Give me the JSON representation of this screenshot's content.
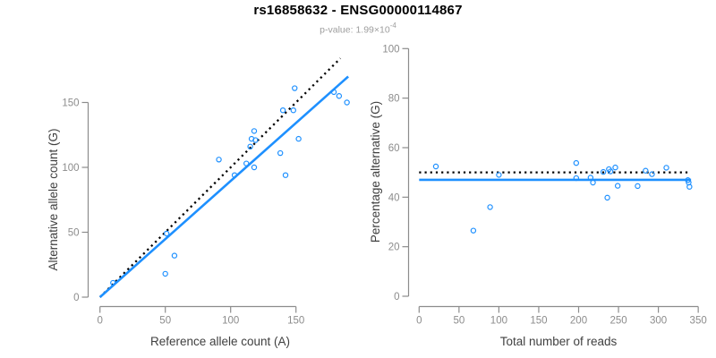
{
  "figure": {
    "title": "rs16858632 - ENSG00000114867",
    "subtitle": {
      "main": "p-value: 1.99×10",
      "exponent": "-4"
    }
  },
  "colors": {
    "accent_blue": "#1E90FF",
    "identity_line_black": "#000000",
    "axis_gray": "#8c8c8c",
    "tick_label_gray": "#8c8c8c",
    "axis_title_dark": "#404040",
    "title_black": "#000000",
    "subtitle_gray": "#9e9e9e"
  },
  "chart_data": [
    {
      "name": "allele-counts-scatter",
      "type": "scatter",
      "title": "",
      "xlabel": "Reference allele count (A)",
      "ylabel": "Alternative allele count (G)",
      "xlim": [
        0,
        190
      ],
      "ylim": [
        0,
        185
      ],
      "xticks": [
        0,
        50,
        100,
        150
      ],
      "yticks": [
        0,
        50,
        100,
        150
      ],
      "grid": false,
      "legend": "none",
      "point_style": "open-circle",
      "points": [
        [
          10,
          11
        ],
        [
          50,
          18
        ],
        [
          57,
          32
        ],
        [
          51,
          49
        ],
        [
          91,
          106
        ],
        [
          103,
          94
        ],
        [
          112,
          103
        ],
        [
          118,
          100
        ],
        [
          115,
          116
        ],
        [
          116,
          122
        ],
        [
          119,
          121
        ],
        [
          118,
          128
        ],
        [
          138,
          111
        ],
        [
          142,
          94
        ],
        [
          140,
          144
        ],
        [
          148,
          144
        ],
        [
          152,
          122
        ],
        [
          149,
          161
        ],
        [
          179,
          158
        ],
        [
          183,
          155
        ],
        [
          189,
          150
        ]
      ],
      "lines": [
        {
          "name": "identity-line",
          "style": "dotted",
          "color": "#000000",
          "from": [
            0,
            0
          ],
          "to": [
            184,
            184
          ]
        },
        {
          "name": "fit-line",
          "style": "solid",
          "color": "#1E90FF",
          "from": [
            0,
            0
          ],
          "to": [
            190,
            170
          ]
        }
      ]
    },
    {
      "name": "percentage-vs-coverage-scatter",
      "type": "scatter",
      "title": "",
      "xlabel": "Total number of reads",
      "ylabel": "Percentage alternative (G)",
      "xlim": [
        0,
        355
      ],
      "ylim": [
        0,
        100
      ],
      "xticks": [
        0,
        50,
        100,
        150,
        200,
        250,
        300,
        350
      ],
      "yticks": [
        0,
        20,
        40,
        60,
        80,
        100
      ],
      "grid": false,
      "legend": "none",
      "point_style": "open-circle",
      "points": [
        [
          21,
          52.4
        ],
        [
          68,
          26.5
        ],
        [
          89,
          36.0
        ],
        [
          100,
          49.0
        ],
        [
          197,
          53.8
        ],
        [
          197,
          47.7
        ],
        [
          215,
          47.9
        ],
        [
          218,
          45.9
        ],
        [
          231,
          50.2
        ],
        [
          238,
          51.3
        ],
        [
          240,
          50.4
        ],
        [
          246,
          52.0
        ],
        [
          249,
          44.6
        ],
        [
          236,
          39.8
        ],
        [
          284,
          50.7
        ],
        [
          292,
          49.3
        ],
        [
          274,
          44.5
        ],
        [
          310,
          51.9
        ],
        [
          337,
          46.9
        ],
        [
          338,
          45.9
        ],
        [
          339,
          44.2
        ]
      ],
      "lines": [
        {
          "name": "expected-50pct-line",
          "style": "dotted",
          "color": "#000000",
          "from": [
            0,
            50
          ],
          "to": [
            337,
            50
          ]
        },
        {
          "name": "fit-line",
          "style": "solid",
          "color": "#1E90FF",
          "from": [
            0,
            47
          ],
          "to": [
            341,
            47
          ]
        }
      ]
    }
  ]
}
